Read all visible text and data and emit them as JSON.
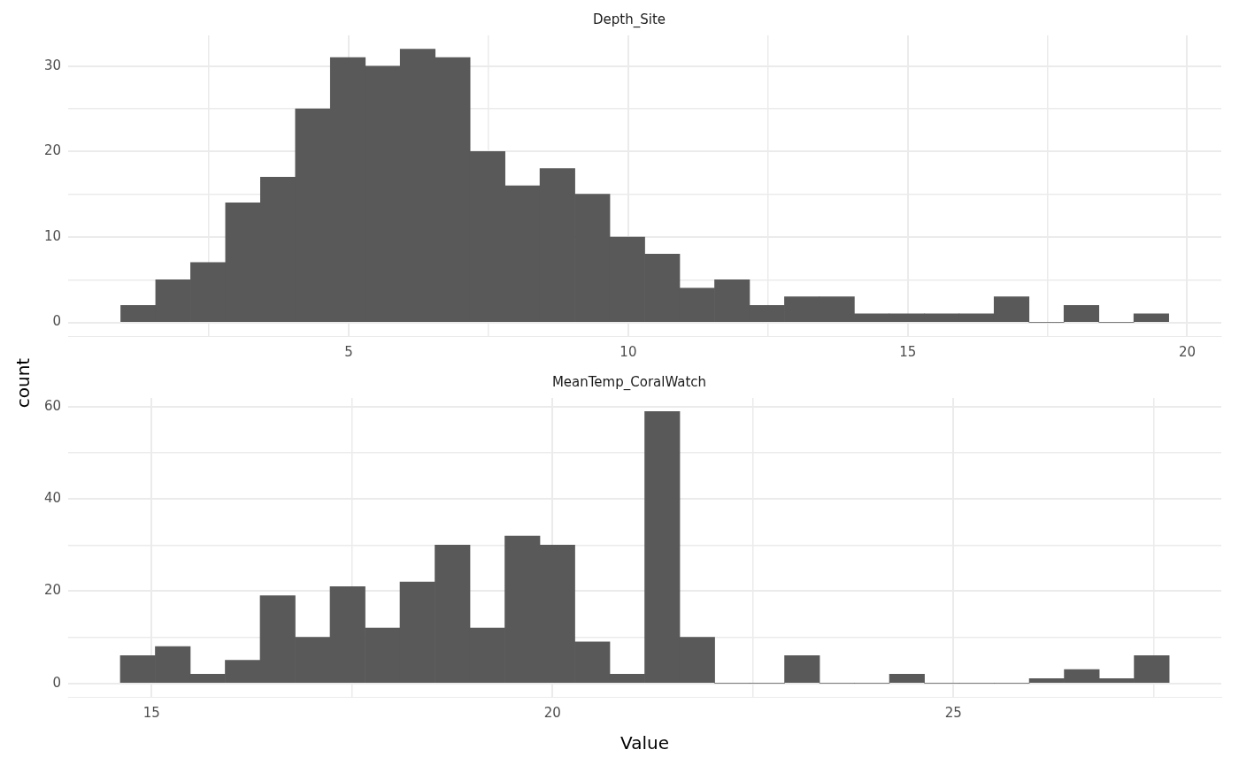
{
  "chart_data": [
    {
      "type": "histogram",
      "title": "Depth_Site",
      "ylabel": "count",
      "color": "#595959",
      "grid": true,
      "bins": [
        0.92,
        1.545,
        2.17,
        2.795,
        3.42,
        4.045,
        4.67,
        5.295,
        5.92,
        6.545,
        7.17,
        7.795,
        8.42,
        9.045,
        9.67,
        10.295,
        10.92,
        11.545,
        12.17,
        12.795,
        13.42,
        14.045,
        14.67,
        15.295,
        15.92,
        16.545,
        17.17,
        17.795,
        18.42,
        19.045,
        19.67
      ],
      "values": [
        2,
        5,
        7,
        14,
        17,
        25,
        31,
        30,
        32,
        31,
        20,
        16,
        18,
        15,
        10,
        8,
        4,
        5,
        2,
        3,
        3,
        1,
        1,
        1,
        1,
        3,
        0,
        2,
        0,
        1
      ],
      "xlim": [
        -0.02,
        20.61
      ],
      "xticks": [
        {
          "value": 2.5,
          "label": null
        },
        5,
        {
          "value": 7.5,
          "label": null
        },
        10,
        {
          "value": 12.5,
          "label": null
        },
        15,
        {
          "value": 17.5,
          "label": null
        },
        20
      ],
      "ylim": [
        -1.6,
        33.6
      ],
      "yticks": [
        {
          "value": 5,
          "label": null
        },
        0,
        10,
        {
          "value": 15,
          "label": null
        },
        20,
        {
          "value": 25,
          "label": null
        },
        30
      ]
    },
    {
      "type": "histogram",
      "title": "MeanTemp_CoralWatch",
      "xlabel": "Value",
      "color": "#595959",
      "grid": true,
      "bins": [
        14.61,
        15.046,
        15.482,
        15.918,
        16.354,
        16.79,
        17.226,
        17.662,
        18.098,
        18.534,
        18.97,
        19.406,
        19.842,
        20.278,
        20.714,
        21.15,
        21.586,
        22.022,
        22.458,
        22.894,
        23.33,
        23.766,
        24.202,
        24.638,
        25.074,
        25.51,
        25.946,
        26.382,
        26.818,
        27.254,
        27.69
      ],
      "values": [
        6,
        8,
        2,
        5,
        19,
        10,
        21,
        12,
        22,
        30,
        12,
        32,
        30,
        9,
        2,
        59,
        10,
        0,
        0,
        6,
        0,
        0,
        2,
        0,
        0,
        0,
        1,
        3,
        1,
        6
      ],
      "xlim": [
        13.96,
        28.34
      ],
      "xticks": [
        15,
        {
          "value": 17.5,
          "label": null
        },
        20,
        {
          "value": 22.5,
          "label": null
        },
        25,
        {
          "value": 27.5,
          "label": null
        }
      ],
      "ylim": [
        -2.95,
        61.95
      ],
      "yticks": [
        {
          "value": 10,
          "label": null
        },
        0,
        20,
        {
          "value": 30,
          "label": null
        },
        40,
        {
          "value": 50,
          "label": null
        },
        60
      ]
    }
  ]
}
